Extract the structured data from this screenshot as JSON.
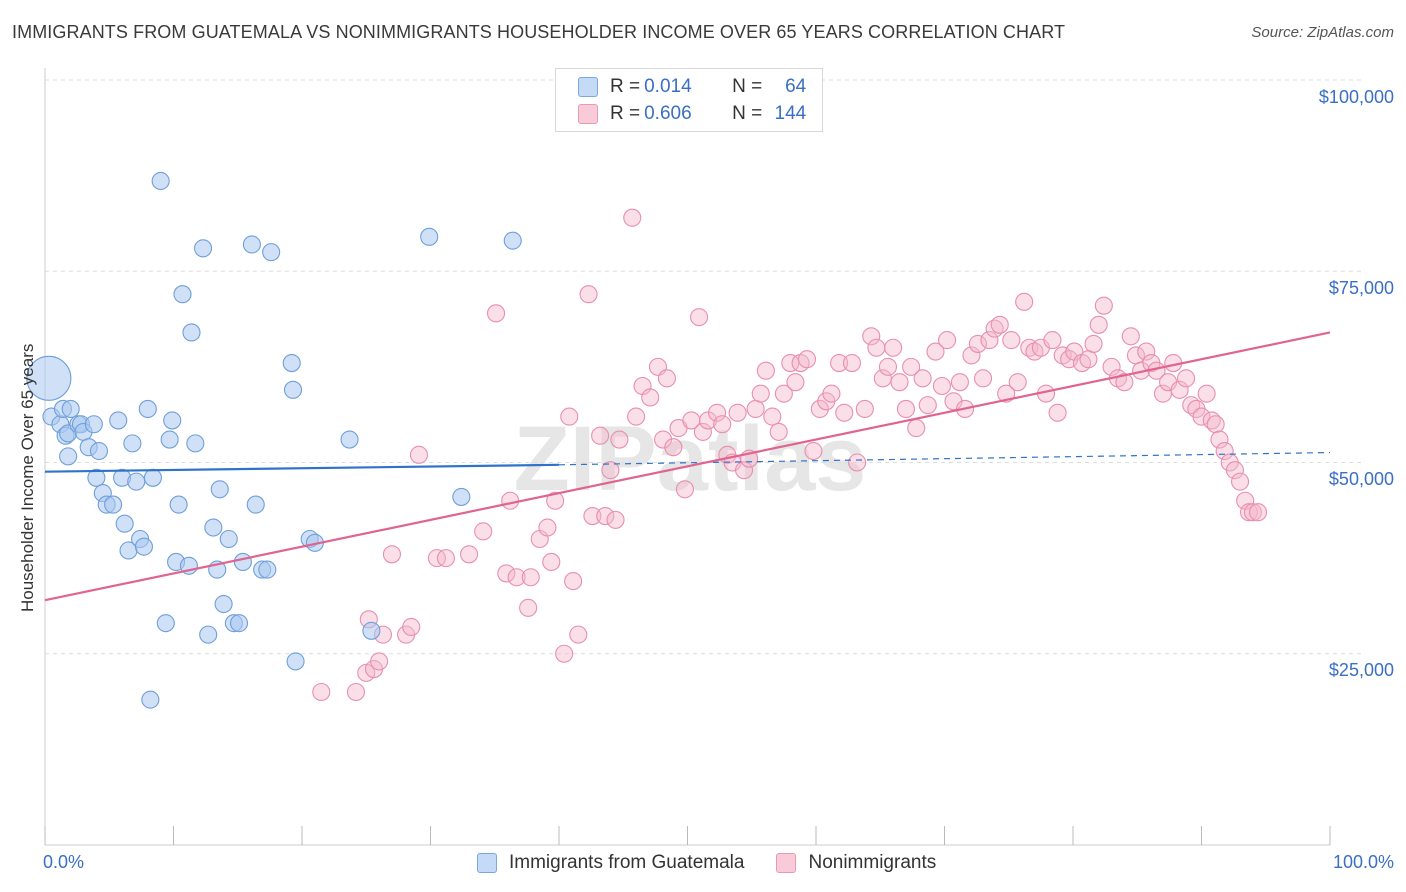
{
  "title": "IMMIGRANTS FROM GUATEMALA VS NONIMMIGRANTS HOUSEHOLDER INCOME OVER 65 YEARS CORRELATION CHART",
  "source_prefix": "Source: ",
  "source_name": "ZipAtlas.com",
  "watermark": "ZIPatlas",
  "legend_top": {
    "rows": [
      {
        "r_label": "R = ",
        "r_value": "0.014",
        "n_label": "N = ",
        "n_value": "64",
        "color": "#a9c8f0"
      },
      {
        "r_label": "R = ",
        "r_value": "0.606",
        "n_label": "N = ",
        "n_value": "144",
        "color": "#f5b8cb"
      }
    ]
  },
  "legend_bottom": [
    {
      "label": "Immigrants from Guatemala",
      "color": "#a9c8f0"
    },
    {
      "label": "Nonimmigrants",
      "color": "#f5b8cb"
    }
  ],
  "colors": {
    "blue_fill": "#a9c8f0",
    "blue_stroke": "#6f9fd8",
    "blue_line": "#2f73c9",
    "pink_fill": "#f5b8cb",
    "pink_stroke": "#e88fac",
    "pink_line": "#e0648f",
    "axis_text": "#3a6fc4",
    "grid": "#dddddd"
  },
  "chart_data": {
    "type": "scatter",
    "title": "IMMIGRANTS FROM GUATEMALA VS NONIMMIGRANTS HOUSEHOLDER INCOME OVER 65 YEARS CORRELATION CHART",
    "xlabel": "",
    "ylabel": "Householder Income Over 65 years",
    "xlim": [
      0,
      100
    ],
    "ylim": [
      0,
      105000
    ],
    "x_tick_labels": [
      "0.0%",
      "100.0%"
    ],
    "y_ticks": [
      25000,
      50000,
      75000,
      100000
    ],
    "y_tick_labels": [
      "$25,000",
      "$50,000",
      "$75,000",
      "$100,000"
    ],
    "grid": "horizontal dashed",
    "legend_position": "top-center",
    "series": [
      {
        "name": "Immigrants from Guatemala",
        "R": 0.014,
        "N": 64,
        "trend": {
          "x0": 0,
          "y0": 48800,
          "x1": 40,
          "y1": 49700,
          "dashed_to_x": 100,
          "dashed_y1": 51300
        },
        "points": [
          [
            0.3,
            61000,
            "large"
          ],
          [
            0.5,
            56000
          ],
          [
            1.2,
            55000
          ],
          [
            1.4,
            57000
          ],
          [
            1.6,
            53500
          ],
          [
            1.8,
            53800
          ],
          [
            1.8,
            50800
          ],
          [
            2.0,
            57000
          ],
          [
            2.6,
            55000
          ],
          [
            2.8,
            55000
          ],
          [
            3.0,
            54000
          ],
          [
            3.4,
            52000
          ],
          [
            3.8,
            55000
          ],
          [
            4.0,
            48000
          ],
          [
            4.2,
            51500
          ],
          [
            4.5,
            46000
          ],
          [
            4.8,
            44500
          ],
          [
            5.3,
            44500
          ],
          [
            5.7,
            55500
          ],
          [
            6.0,
            48000
          ],
          [
            6.2,
            42000
          ],
          [
            6.5,
            38500
          ],
          [
            6.8,
            52500
          ],
          [
            7.1,
            47500
          ],
          [
            7.4,
            40000
          ],
          [
            7.7,
            39000
          ],
          [
            8.0,
            57000
          ],
          [
            8.4,
            48000
          ],
          [
            9.0,
            86800
          ],
          [
            9.4,
            29000
          ],
          [
            9.7,
            53000
          ],
          [
            9.9,
            55500
          ],
          [
            10.2,
            37000
          ],
          [
            10.4,
            44500
          ],
          [
            10.7,
            72000
          ],
          [
            11.2,
            36500
          ],
          [
            11.4,
            67000
          ],
          [
            11.7,
            52500
          ],
          [
            12.3,
            78000
          ],
          [
            12.7,
            27500
          ],
          [
            13.1,
            41500
          ],
          [
            13.4,
            36000
          ],
          [
            13.6,
            46500
          ],
          [
            13.9,
            31500
          ],
          [
            14.3,
            40000
          ],
          [
            14.7,
            29000
          ],
          [
            15.1,
            29000
          ],
          [
            15.4,
            37000
          ],
          [
            16.1,
            78500
          ],
          [
            16.4,
            44500
          ],
          [
            16.9,
            36000
          ],
          [
            17.3,
            36000
          ],
          [
            17.6,
            77500
          ],
          [
            19.2,
            63000
          ],
          [
            19.3,
            59500
          ],
          [
            19.5,
            24000
          ],
          [
            20.6,
            40000
          ],
          [
            21.0,
            39500
          ],
          [
            23.7,
            53000
          ],
          [
            25.4,
            28000
          ],
          [
            29.9,
            79500
          ],
          [
            32.4,
            45500
          ],
          [
            36.4,
            79000
          ],
          [
            8.2,
            19000
          ]
        ]
      },
      {
        "name": "Nonimmigrants",
        "R": 0.606,
        "N": 144,
        "trend": {
          "x0": 0,
          "y0": 32000,
          "x1": 100,
          "y1": 67000
        },
        "points": [
          [
            21.5,
            20000
          ],
          [
            24.2,
            20000
          ],
          [
            25.0,
            22500
          ],
          [
            25.2,
            29500
          ],
          [
            25.6,
            23000
          ],
          [
            26.0,
            24000
          ],
          [
            26.3,
            27500
          ],
          [
            27.0,
            38000
          ],
          [
            28.1,
            27500
          ],
          [
            28.5,
            28500
          ],
          [
            29.1,
            51000
          ],
          [
            30.5,
            37500
          ],
          [
            31.2,
            37500
          ],
          [
            33.0,
            38000
          ],
          [
            34.1,
            41000
          ],
          [
            35.1,
            69500
          ],
          [
            35.9,
            35500
          ],
          [
            36.2,
            45000
          ],
          [
            36.7,
            35000
          ],
          [
            37.6,
            31000
          ],
          [
            37.8,
            35000
          ],
          [
            38.5,
            40000
          ],
          [
            39.1,
            41500
          ],
          [
            39.4,
            37000
          ],
          [
            39.7,
            45000
          ],
          [
            40.4,
            25000
          ],
          [
            40.8,
            56000
          ],
          [
            41.1,
            34500
          ],
          [
            41.5,
            27500
          ],
          [
            42.3,
            72000
          ],
          [
            42.6,
            43000
          ],
          [
            43.2,
            53500
          ],
          [
            43.6,
            43000
          ],
          [
            44.0,
            49000
          ],
          [
            44.4,
            42500
          ],
          [
            44.7,
            53000
          ],
          [
            45.7,
            82000
          ],
          [
            46.0,
            56000
          ],
          [
            46.5,
            60000
          ],
          [
            47.1,
            58500
          ],
          [
            47.7,
            62500
          ],
          [
            48.1,
            53000
          ],
          [
            48.4,
            61000
          ],
          [
            48.9,
            52000
          ],
          [
            49.3,
            54500
          ],
          [
            49.8,
            46500
          ],
          [
            50.3,
            55500
          ],
          [
            50.9,
            69000
          ],
          [
            51.2,
            54000
          ],
          [
            51.6,
            55500
          ],
          [
            52.3,
            56500
          ],
          [
            52.7,
            55000
          ],
          [
            53.1,
            51000
          ],
          [
            53.5,
            50000
          ],
          [
            53.9,
            56500
          ],
          [
            54.4,
            49000
          ],
          [
            54.8,
            50500
          ],
          [
            55.3,
            57000
          ],
          [
            55.7,
            59000
          ],
          [
            56.1,
            62000
          ],
          [
            56.6,
            56000
          ],
          [
            57.1,
            54000
          ],
          [
            57.5,
            59000
          ],
          [
            58.0,
            63000
          ],
          [
            58.4,
            60500
          ],
          [
            58.8,
            63000
          ],
          [
            59.3,
            63500
          ],
          [
            59.8,
            51500
          ],
          [
            60.3,
            57000
          ],
          [
            60.8,
            58000
          ],
          [
            61.2,
            59000
          ],
          [
            61.8,
            63000
          ],
          [
            62.2,
            56500
          ],
          [
            62.8,
            63000
          ],
          [
            63.2,
            50000
          ],
          [
            63.8,
            57000
          ],
          [
            64.3,
            66500
          ],
          [
            64.7,
            65000
          ],
          [
            65.2,
            61000
          ],
          [
            65.6,
            62500
          ],
          [
            66.0,
            65000
          ],
          [
            66.5,
            60500
          ],
          [
            67.0,
            57000
          ],
          [
            67.4,
            62500
          ],
          [
            67.8,
            54500
          ],
          [
            68.3,
            61000
          ],
          [
            68.7,
            57500
          ],
          [
            69.3,
            64500
          ],
          [
            69.8,
            60000
          ],
          [
            70.2,
            66000
          ],
          [
            70.7,
            58000
          ],
          [
            71.2,
            60500
          ],
          [
            71.6,
            57000
          ],
          [
            72.1,
            64000
          ],
          [
            72.6,
            65500
          ],
          [
            73.0,
            61000
          ],
          [
            73.5,
            66000
          ],
          [
            73.9,
            67500
          ],
          [
            74.3,
            68000
          ],
          [
            74.8,
            59000
          ],
          [
            75.2,
            66000
          ],
          [
            75.7,
            60500
          ],
          [
            76.2,
            71000
          ],
          [
            76.6,
            65000
          ],
          [
            77.0,
            64500
          ],
          [
            77.5,
            65000
          ],
          [
            77.9,
            59000
          ],
          [
            78.4,
            66000
          ],
          [
            78.8,
            56500
          ],
          [
            79.2,
            64000
          ],
          [
            79.7,
            63500
          ],
          [
            80.1,
            64500
          ],
          [
            80.7,
            63000
          ],
          [
            81.2,
            63500
          ],
          [
            81.6,
            65500
          ],
          [
            82.0,
            68000
          ],
          [
            82.4,
            70500
          ],
          [
            83.0,
            62500
          ],
          [
            83.5,
            61000
          ],
          [
            84.0,
            60500
          ],
          [
            84.5,
            66500
          ],
          [
            84.9,
            64000
          ],
          [
            85.3,
            62000
          ],
          [
            85.7,
            64500
          ],
          [
            86.1,
            63000
          ],
          [
            86.5,
            62000
          ],
          [
            87.0,
            59000
          ],
          [
            87.4,
            60500
          ],
          [
            87.8,
            63000
          ],
          [
            88.3,
            59500
          ],
          [
            88.8,
            61000
          ],
          [
            89.2,
            57500
          ],
          [
            89.6,
            57000
          ],
          [
            90.0,
            56000
          ],
          [
            90.4,
            59000
          ],
          [
            90.8,
            55500
          ],
          [
            91.1,
            55000
          ],
          [
            91.4,
            53000
          ],
          [
            91.8,
            51500
          ],
          [
            92.2,
            50000
          ],
          [
            92.6,
            49000
          ],
          [
            93.0,
            47500
          ],
          [
            93.4,
            45000
          ],
          [
            93.7,
            43500
          ],
          [
            94.0,
            43500
          ],
          [
            94.4,
            43500
          ]
        ]
      }
    ]
  }
}
